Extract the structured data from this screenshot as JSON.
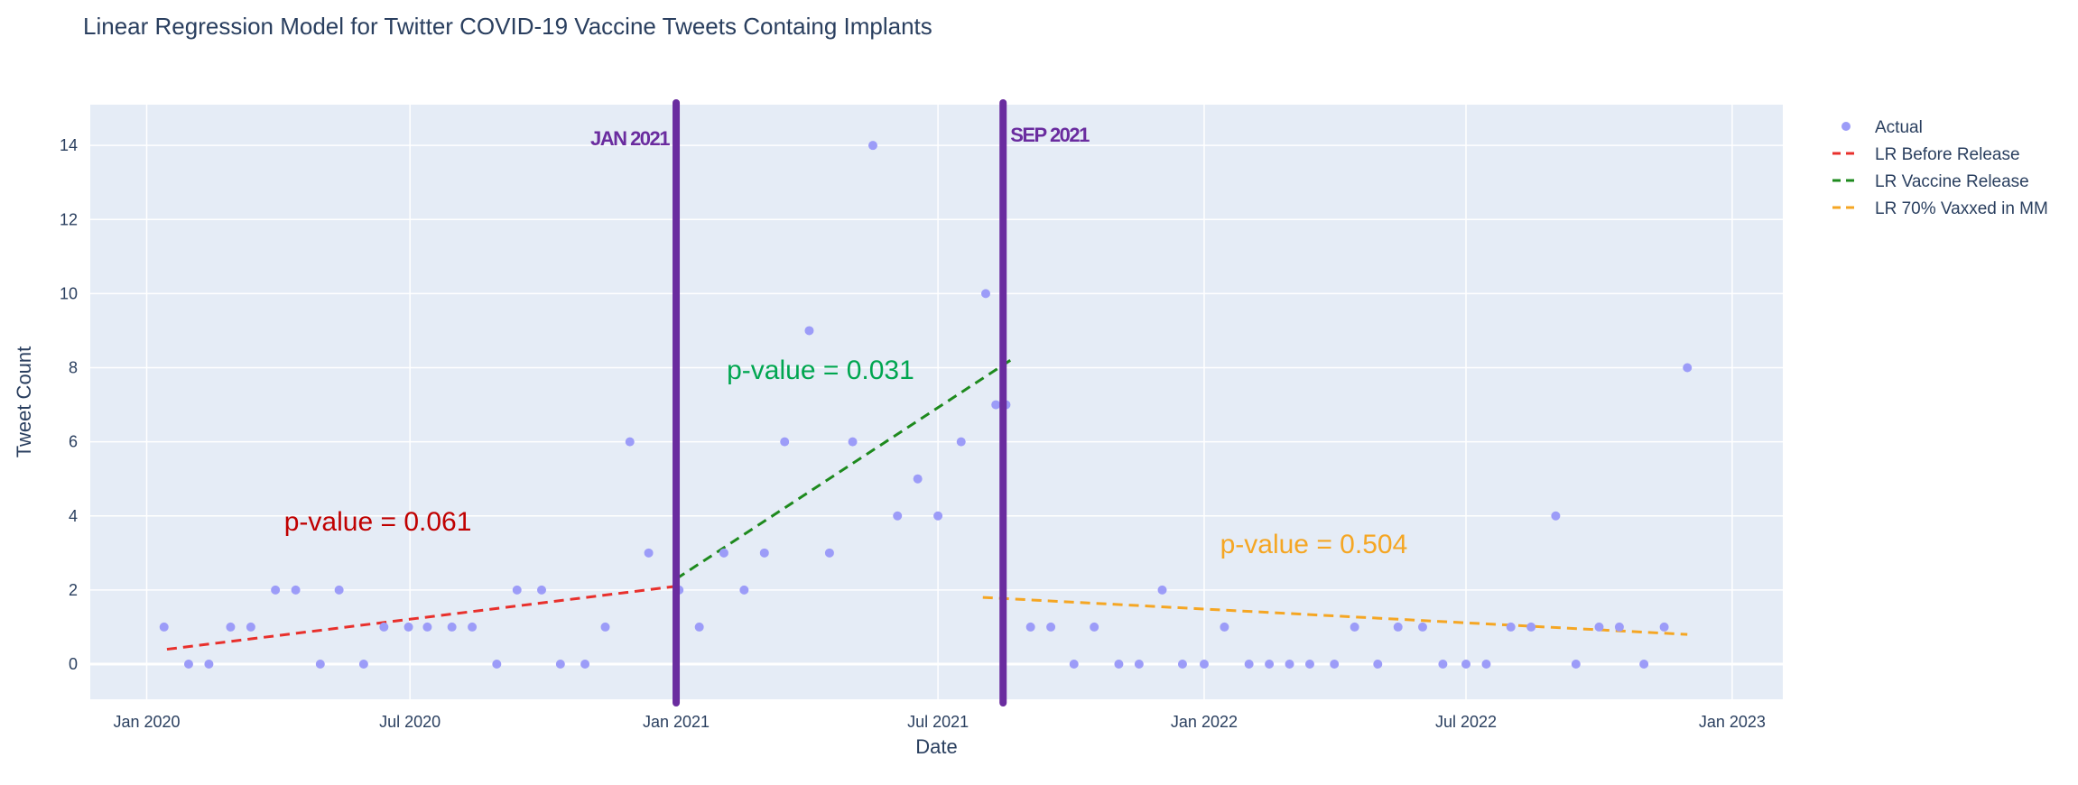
{
  "chart_data": {
    "type": "scatter",
    "title": "Linear Regression Model for Twitter COVID-19 Vaccine Tweets Containg Implants",
    "xlabel": "Date",
    "ylabel": "Tweet Count",
    "xlim": [
      "2019-11-23",
      "2023-02-05"
    ],
    "ylim": [
      -0.95,
      15.1
    ],
    "grid": true,
    "legend_position": "top-right",
    "x_ticks": [
      {
        "date": "2020-01-01",
        "label": "Jan 2020"
      },
      {
        "date": "2020-07-01",
        "label": "Jul 2020"
      },
      {
        "date": "2021-01-01",
        "label": "Jan 2021"
      },
      {
        "date": "2021-07-01",
        "label": "Jul 2021"
      },
      {
        "date": "2022-01-01",
        "label": "Jan 2022"
      },
      {
        "date": "2022-07-01",
        "label": "Jul 2022"
      },
      {
        "date": "2023-01-01",
        "label": "Jan 2023"
      }
    ],
    "y_ticks": [
      0,
      2,
      4,
      6,
      8,
      10,
      12,
      14
    ],
    "series": [
      {
        "name": "Actual",
        "mode": "markers",
        "color": "#9c9cf8",
        "points": [
          {
            "x": "2020-01-13",
            "y": 1
          },
          {
            "x": "2020-01-30",
            "y": 0
          },
          {
            "x": "2020-02-13",
            "y": 0
          },
          {
            "x": "2020-02-28",
            "y": 1
          },
          {
            "x": "2020-03-13",
            "y": 1
          },
          {
            "x": "2020-03-30",
            "y": 2
          },
          {
            "x": "2020-04-13",
            "y": 2
          },
          {
            "x": "2020-04-30",
            "y": 0
          },
          {
            "x": "2020-05-13",
            "y": 2
          },
          {
            "x": "2020-05-30",
            "y": 0
          },
          {
            "x": "2020-06-13",
            "y": 1
          },
          {
            "x": "2020-06-30",
            "y": 1
          },
          {
            "x": "2020-07-13",
            "y": 1
          },
          {
            "x": "2020-07-30",
            "y": 1
          },
          {
            "x": "2020-08-13",
            "y": 1
          },
          {
            "x": "2020-08-30",
            "y": 0
          },
          {
            "x": "2020-09-13",
            "y": 2
          },
          {
            "x": "2020-09-30",
            "y": 2
          },
          {
            "x": "2020-10-13",
            "y": 0
          },
          {
            "x": "2020-10-30",
            "y": 0
          },
          {
            "x": "2020-11-13",
            "y": 1
          },
          {
            "x": "2020-11-30",
            "y": 6
          },
          {
            "x": "2020-12-13",
            "y": 3
          },
          {
            "x": "2021-01-03",
            "y": 2
          },
          {
            "x": "2021-01-17",
            "y": 1
          },
          {
            "x": "2021-02-03",
            "y": 3
          },
          {
            "x": "2021-02-17",
            "y": 2
          },
          {
            "x": "2021-03-03",
            "y": 3
          },
          {
            "x": "2021-03-17",
            "y": 6
          },
          {
            "x": "2021-04-03",
            "y": 9
          },
          {
            "x": "2021-04-17",
            "y": 3
          },
          {
            "x": "2021-05-03",
            "y": 6
          },
          {
            "x": "2021-05-17",
            "y": 14
          },
          {
            "x": "2021-06-03",
            "y": 4
          },
          {
            "x": "2021-06-17",
            "y": 5
          },
          {
            "x": "2021-07-01",
            "y": 4
          },
          {
            "x": "2021-07-17",
            "y": 6
          },
          {
            "x": "2021-08-03",
            "y": 10
          },
          {
            "x": "2021-08-10",
            "y": 7
          },
          {
            "x": "2021-08-17",
            "y": 7
          },
          {
            "x": "2021-09-03",
            "y": 1
          },
          {
            "x": "2021-09-17",
            "y": 1
          },
          {
            "x": "2021-10-03",
            "y": 0
          },
          {
            "x": "2021-10-17",
            "y": 1
          },
          {
            "x": "2021-11-03",
            "y": 0
          },
          {
            "x": "2021-11-17",
            "y": 0
          },
          {
            "x": "2021-12-03",
            "y": 2
          },
          {
            "x": "2021-12-17",
            "y": 0
          },
          {
            "x": "2022-01-01",
            "y": 0
          },
          {
            "x": "2022-01-15",
            "y": 1
          },
          {
            "x": "2022-02-01",
            "y": 0
          },
          {
            "x": "2022-02-15",
            "y": 0
          },
          {
            "x": "2022-03-01",
            "y": 0
          },
          {
            "x": "2022-03-15",
            "y": 0
          },
          {
            "x": "2022-04-01",
            "y": 0
          },
          {
            "x": "2022-04-15",
            "y": 1
          },
          {
            "x": "2022-05-01",
            "y": 0
          },
          {
            "x": "2022-05-15",
            "y": 1
          },
          {
            "x": "2022-06-01",
            "y": 1
          },
          {
            "x": "2022-06-15",
            "y": 0
          },
          {
            "x": "2022-07-01",
            "y": 0
          },
          {
            "x": "2022-07-15",
            "y": 0
          },
          {
            "x": "2022-08-01",
            "y": 1
          },
          {
            "x": "2022-08-15",
            "y": 1
          },
          {
            "x": "2022-09-01",
            "y": 4
          },
          {
            "x": "2022-09-15",
            "y": 0
          },
          {
            "x": "2022-10-01",
            "y": 1
          },
          {
            "x": "2022-10-15",
            "y": 1
          },
          {
            "x": "2022-11-01",
            "y": 0
          },
          {
            "x": "2022-11-15",
            "y": 1
          },
          {
            "x": "2022-12-01",
            "y": 8
          }
        ]
      },
      {
        "name": "LR Before Release",
        "mode": "dashed-line",
        "color": "#e8302c",
        "points": [
          {
            "x": "2020-01-15",
            "y": 0.4
          },
          {
            "x": "2021-01-01",
            "y": 2.1
          }
        ]
      },
      {
        "name": "LR Vaccine Release",
        "mode": "dashed-line",
        "color": "#1e8a1e",
        "points": [
          {
            "x": "2021-01-01",
            "y": 2.3
          },
          {
            "x": "2021-08-20",
            "y": 8.2
          }
        ]
      },
      {
        "name": "LR 70% Vaxxed in MM",
        "mode": "dashed-line",
        "color": "#f5a623",
        "points": [
          {
            "x": "2021-08-01",
            "y": 1.8
          },
          {
            "x": "2022-12-01",
            "y": 0.8
          }
        ]
      }
    ],
    "vertical_markers": [
      {
        "x": "2021-01-01",
        "label": "JAN 2021",
        "label_side": "left",
        "label_y": 14.2,
        "color": "#6a2c9f"
      },
      {
        "x": "2021-08-15",
        "label": "SEP 2021",
        "label_side": "right",
        "label_y": 14.3,
        "color": "#6a2c9f"
      }
    ],
    "annotations": [
      {
        "text": "p-value = 0.061",
        "x": "2020-04-05",
        "y": 3.6,
        "color": "#c00000"
      },
      {
        "text": "p-value = 0.031",
        "x": "2021-02-05",
        "y": 7.7,
        "color": "#00a650"
      },
      {
        "text": "p-value = 0.504",
        "x": "2022-01-12",
        "y": 3.0,
        "color": "#f5a623"
      }
    ]
  }
}
